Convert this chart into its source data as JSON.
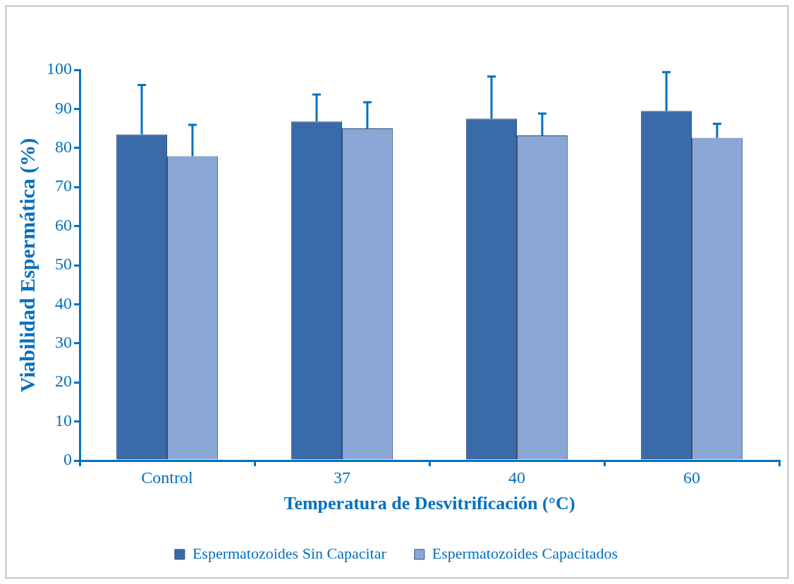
{
  "chart_data": {
    "type": "bar",
    "xlabel": "Temperatura de Desvitrificación (°C)",
    "ylabel": "Viabilidad Espermática (%)",
    "categories": [
      "Control",
      "37",
      "40",
      "60"
    ],
    "series": [
      {
        "name": "Espermatozoides Sin Capacitar",
        "color": "#3a6aa8",
        "values": [
          83.5,
          86.8,
          87.5,
          89.5
        ],
        "errors": [
          [
            83.5,
            96.1
          ],
          [
            86.8,
            93.7
          ],
          [
            87.5,
            98.3
          ],
          [
            89.5,
            99.4
          ]
        ]
      },
      {
        "name": "Espermatozoides Capacitados",
        "color": "#8aa6d4",
        "values": [
          77.9,
          85.0,
          83.2,
          82.6
        ],
        "errors": [
          [
            77.9,
            85.9
          ],
          [
            85.0,
            91.7
          ],
          [
            83.2,
            88.8
          ],
          [
            82.6,
            86.2
          ]
        ]
      }
    ],
    "ylim": [
      0,
      100
    ],
    "yticks": [
      0,
      10,
      20,
      30,
      40,
      50,
      60,
      70,
      80,
      90,
      100
    ],
    "grid": false,
    "legend": "bottom"
  }
}
